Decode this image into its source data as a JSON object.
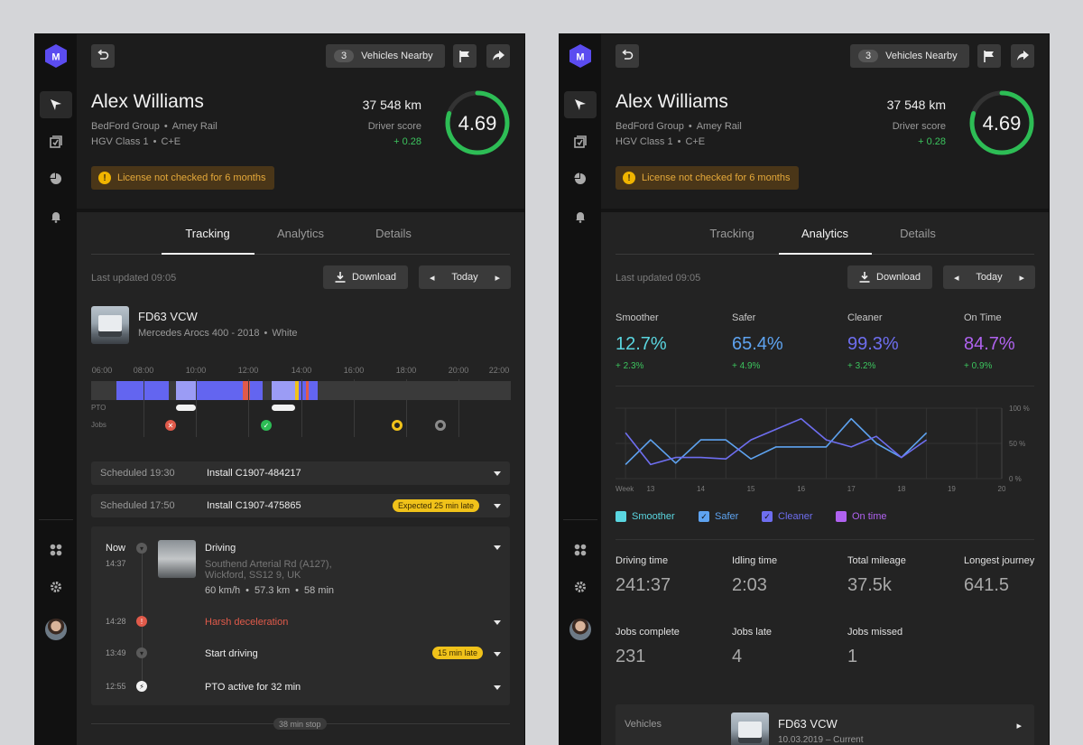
{
  "driver": {
    "name": "Alex Williams",
    "company": "BedFord Group",
    "client": "Amey Rail",
    "license_class": "HGV Class 1",
    "license_cat": "C+E",
    "distance": "37 548 km",
    "score_label": "Driver score",
    "score_delta": "+ 0.28",
    "score": "4.69",
    "score_fraction": 0.8,
    "warning": "License not checked for 6 months",
    "warning_icon": "!"
  },
  "toolbar": {
    "nearby_count": "3",
    "nearby_label": "Vehicles Nearby"
  },
  "tabs": [
    "Tracking",
    "Analytics",
    "Details"
  ],
  "controls": {
    "updated": "Last updated 09:05",
    "download": "Download",
    "day": "Today"
  },
  "vehicle": {
    "reg": "FD63 VCW",
    "model": "Mercedes Arocs 400 - 2018",
    "color": "White"
  },
  "timeline": {
    "hours": [
      "06:00",
      "08:00",
      "10:00",
      "12:00",
      "14:00",
      "16:00",
      "18:00",
      "20:00",
      "22:00"
    ],
    "pto_label": "PTO",
    "jobs_label": "Jobs"
  },
  "schedule": [
    {
      "time": "Scheduled 19:30",
      "title": "Install C1907-484217",
      "badge": ""
    },
    {
      "time": "Scheduled 17:50",
      "title": "Install C1907-475865",
      "badge": "Expected 25 min late"
    }
  ],
  "events": [
    {
      "time": "Now",
      "sub": "14:37",
      "title": "Driving",
      "address1": "Southend Arterial Rd (A127),",
      "address2": "Wickford, SS12 9, UK",
      "speed": "60 km/h",
      "distance": "57.3 km",
      "duration": "58 min"
    },
    {
      "time": "14:28",
      "title": "Harsh deceleration",
      "icon": "!"
    },
    {
      "time": "13:49",
      "title": "Start driving",
      "badge": "15 min late"
    },
    {
      "time": "12:55",
      "title": "PTO active for 32 min"
    }
  ],
  "stop_label": "38 min stop",
  "analytics": {
    "metrics": [
      {
        "label": "Smoother",
        "value": "12.7%",
        "delta": "+ 2.3%",
        "color": "#5ad6e0"
      },
      {
        "label": "Safer",
        "value": "65.4%",
        "delta": "+ 4.9%",
        "color": "#5ea3f0"
      },
      {
        "label": "Cleaner",
        "value": "99.3%",
        "delta": "+ 3.2%",
        "color": "#6e6ef0"
      },
      {
        "label": "On Time",
        "value": "84.7%",
        "delta": "+ 0.9%",
        "color": "#b062f0"
      }
    ],
    "legend": [
      "Smoother",
      "Safer",
      "Cleaner",
      "On time"
    ],
    "legend_check": "✓",
    "stats_row1": [
      {
        "label": "Driving time",
        "value": "241:37"
      },
      {
        "label": "Idling time",
        "value": "2:03"
      },
      {
        "label": "Total mileage",
        "value": "37.5k"
      },
      {
        "label": "Longest journey",
        "value": "641.5"
      }
    ],
    "stats_row2": [
      {
        "label": "Jobs complete",
        "value": "231"
      },
      {
        "label": "Jobs late",
        "value": "4"
      },
      {
        "label": "Jobs missed",
        "value": "1"
      }
    ],
    "vehicles_label": "Vehicles",
    "vehicle_reg": "FD63 VCW",
    "vehicle_period": "10.03.2019 – Current"
  },
  "chart_data": {
    "type": "line",
    "x": [
      12.5,
      13,
      13.5,
      14,
      14.5,
      15,
      15.5,
      16,
      16.5,
      17,
      17.5,
      18,
      18.5,
      19,
      19.5
    ],
    "xlabel": "Week",
    "x_ticks": [
      "13",
      "14",
      "15",
      "16",
      "17",
      "18",
      "19",
      "20"
    ],
    "y_ticks": [
      "100 %",
      "50 %",
      "0 %"
    ],
    "ylim": [
      0,
      100
    ],
    "series": [
      {
        "name": "Smoother",
        "color": "#5ad6e0",
        "values": [
          null,
          null,
          null,
          null,
          null,
          null,
          null,
          null,
          null,
          null,
          null,
          null,
          null,
          null,
          null
        ]
      },
      {
        "name": "Safer",
        "color": "#5ea3f0",
        "values": [
          20,
          55,
          22,
          55,
          55,
          28,
          45,
          45,
          45,
          85,
          50,
          30,
          65,
          null,
          null
        ]
      },
      {
        "name": "Cleaner",
        "color": "#6e6ef0",
        "values": [
          65,
          20,
          30,
          30,
          28,
          55,
          70,
          85,
          55,
          45,
          60,
          30,
          55,
          null,
          null
        ]
      },
      {
        "name": "On time",
        "color": "#b062f0",
        "values": [
          null,
          null,
          null,
          null,
          null,
          null,
          null,
          null,
          null,
          null,
          null,
          null,
          null,
          null,
          null
        ]
      }
    ]
  }
}
